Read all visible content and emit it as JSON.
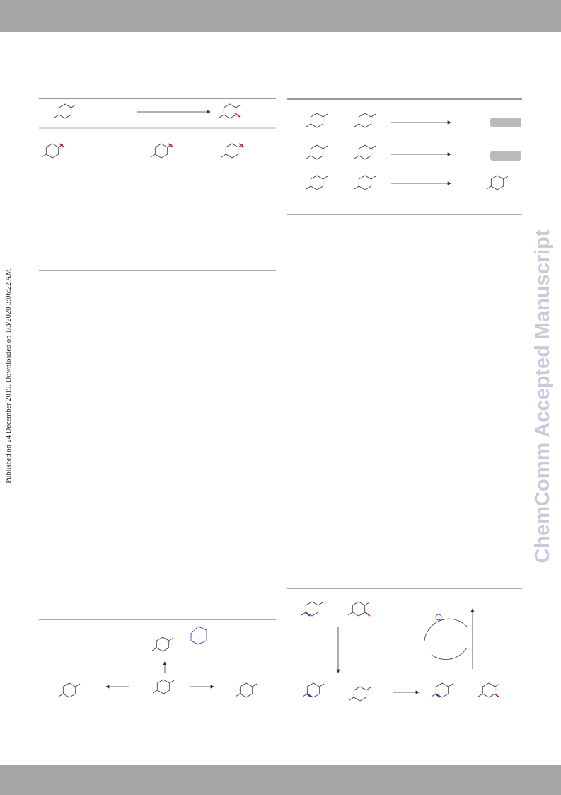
{
  "sidebar": {
    "published_note": "Published on 24 December 2019. Downloaded on 1/3/2020 3:06:22 AM."
  },
  "watermark": {
    "text": "ChemComm Accepted Manuscript"
  }
}
